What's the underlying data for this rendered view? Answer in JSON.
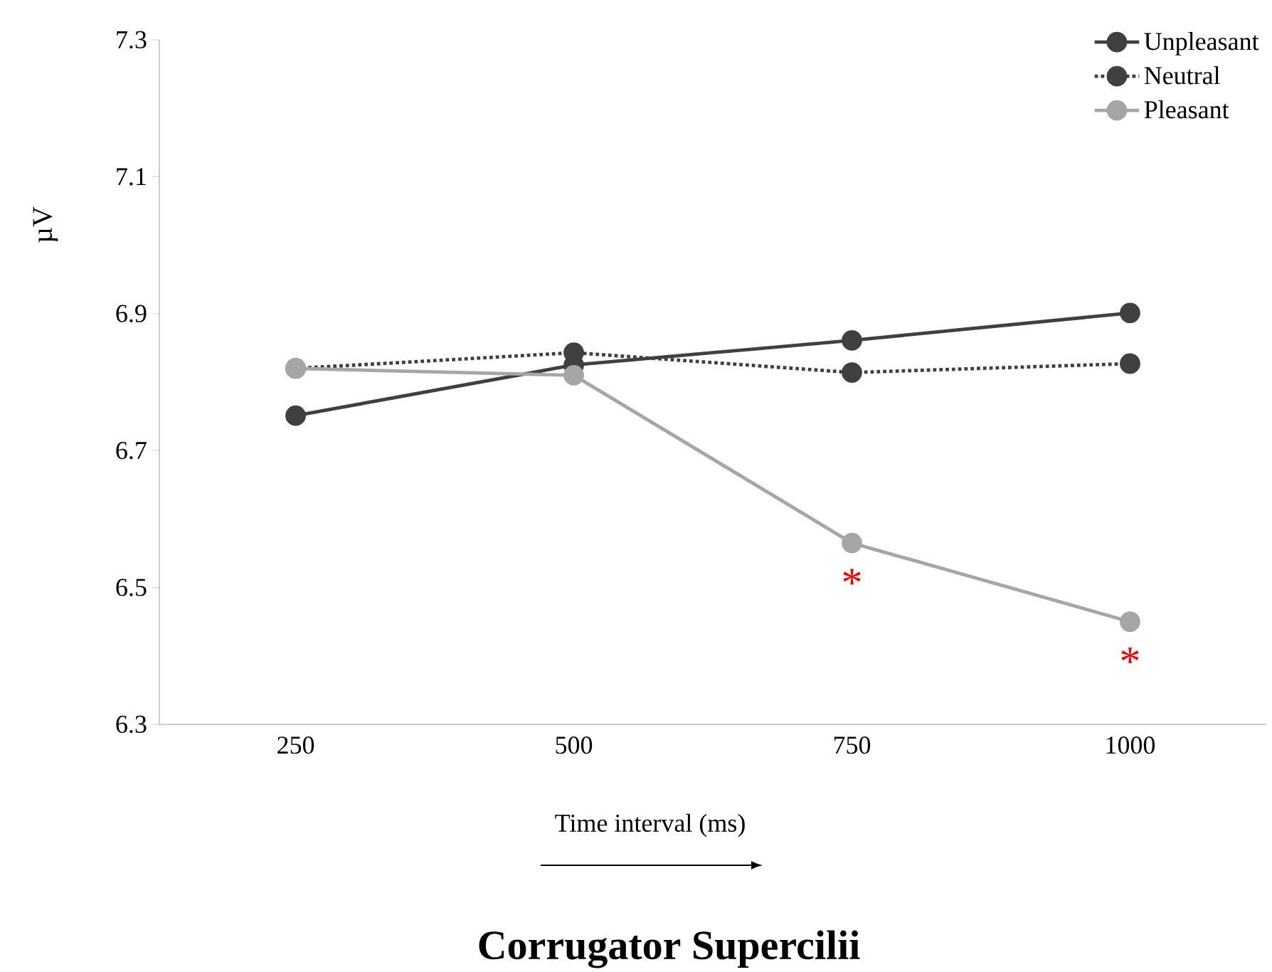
{
  "chart_data": {
    "type": "line",
    "title": "Corrugator Supercilii",
    "xlabel": "Time interval (ms)",
    "ylabel": "µV",
    "categories": [
      "250",
      "500",
      "750",
      "1000"
    ],
    "series": [
      {
        "name": "Unpleasant",
        "color": "#404040",
        "line_style": "solid",
        "values": [
          6.751,
          6.825,
          6.861,
          6.901
        ]
      },
      {
        "name": "Neutral",
        "color": "#404040",
        "line_style": "dotted",
        "values": [
          6.82,
          6.843,
          6.814,
          6.827
        ]
      },
      {
        "name": "Pleasant",
        "color": "#a6a6a6",
        "line_style": "solid",
        "values": [
          6.82,
          6.81,
          6.565,
          6.45
        ]
      }
    ],
    "ylim": [
      6.3,
      7.3
    ],
    "yticks": [
      6.3,
      6.5,
      6.7,
      6.9,
      7.1,
      7.3
    ],
    "marker": "circle",
    "legend": "top right",
    "grid": false,
    "annotations": [
      "*",
      "*"
    ]
  }
}
